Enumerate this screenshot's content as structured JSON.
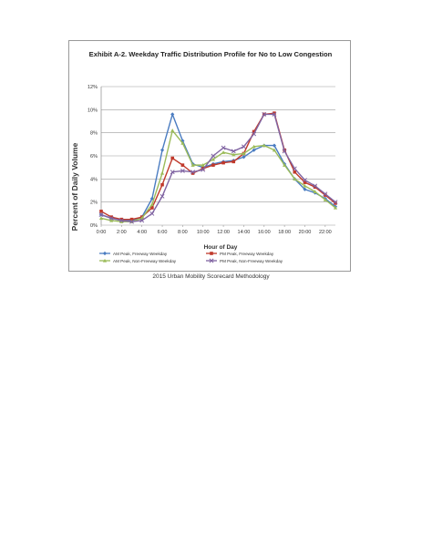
{
  "caption": "2015 Urban Mobility Scorecard Methodology",
  "colors": {
    "am_freeway": "#4a7cc1",
    "pm_freeway": "#c0392b",
    "am_nonfreeway": "#9bbb59",
    "pm_nonfreeway": "#8064a2",
    "grid": "#9a9a9a",
    "axis_text": "#333333"
  },
  "chart_data": {
    "type": "line",
    "title": "Exhibit A-2.  Weekday Traffic Distribution Profile for No to Low Congestion",
    "xlabel": "Hour of Day",
    "ylabel": "Percent of Daily Volume",
    "x": [
      0,
      1,
      2,
      3,
      4,
      5,
      6,
      7,
      8,
      9,
      10,
      11,
      12,
      13,
      14,
      15,
      16,
      17,
      18,
      19,
      20,
      21,
      22,
      23
    ],
    "x_ticks": [
      "0:00",
      "2:00",
      "4:00",
      "6:00",
      "8:00",
      "10:00",
      "12:00",
      "14:00",
      "16:00",
      "18:00",
      "20:00",
      "22:00"
    ],
    "y_ticks": [
      "0%",
      "2%",
      "4%",
      "6%",
      "8%",
      "10%",
      "12%"
    ],
    "ylim": [
      0,
      12
    ],
    "xlim": [
      0,
      23
    ],
    "grid": true,
    "legend_position": "bottom",
    "series": [
      {
        "name": "AM Peak, Freeway Weekday",
        "values": [
          0.9,
          0.6,
          0.4,
          0.4,
          0.7,
          2.3,
          6.5,
          9.6,
          7.3,
          5.3,
          5.0,
          5.3,
          5.5,
          5.6,
          5.9,
          6.5,
          6.9,
          6.9,
          5.3,
          4.0,
          3.1,
          2.8,
          2.3,
          1.6
        ]
      },
      {
        "name": "PM Peak, Freeway Weekday",
        "values": [
          1.2,
          0.7,
          0.5,
          0.5,
          0.7,
          1.5,
          3.5,
          5.8,
          5.2,
          4.5,
          4.9,
          5.2,
          5.4,
          5.5,
          6.2,
          8.1,
          9.6,
          9.7,
          6.5,
          4.6,
          3.7,
          3.3,
          2.6,
          1.9
        ]
      },
      {
        "name": "AM Peak, Non-Freeway Weekday",
        "values": [
          0.6,
          0.4,
          0.3,
          0.3,
          0.6,
          1.8,
          4.5,
          8.2,
          7.1,
          5.2,
          5.2,
          5.7,
          6.3,
          6.1,
          6.2,
          6.8,
          6.9,
          6.5,
          5.2,
          4.0,
          3.4,
          2.9,
          2.2,
          1.5
        ]
      },
      {
        "name": "PM Peak, Non-Freeway Weekday",
        "values": [
          0.9,
          0.6,
          0.4,
          0.3,
          0.4,
          1.0,
          2.5,
          4.6,
          4.7,
          4.6,
          4.8,
          6.0,
          6.7,
          6.4,
          6.8,
          7.9,
          9.6,
          9.6,
          6.4,
          4.9,
          3.9,
          3.4,
          2.7,
          2.0
        ]
      }
    ]
  }
}
